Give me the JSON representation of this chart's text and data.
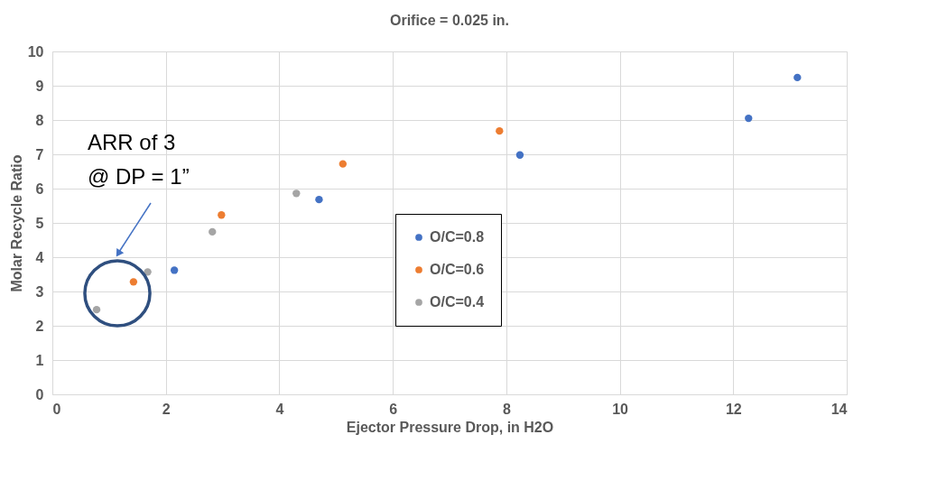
{
  "chart_data": {
    "type": "scatter",
    "title": "Orifice = 0.025 in.",
    "xlabel": "Ejector Pressure Drop, in H2O",
    "ylabel": "Molar Recycle Ratio",
    "series": [
      {
        "name": "O/C=0.8",
        "color": "#4472c4",
        "x": [
          2.15,
          4.7,
          8.24,
          12.27,
          13.13
        ],
        "values": [
          3.62,
          5.68,
          6.98,
          8.05,
          9.24
        ]
      },
      {
        "name": "O/C=0.6",
        "color": "#ed7d31",
        "x": [
          1.43,
          2.98,
          5.12,
          7.88
        ],
        "values": [
          3.28,
          5.23,
          6.72,
          7.68
        ]
      },
      {
        "name": "O/C=0.4",
        "color": "#a5a5a5",
        "x": [
          0.78,
          1.68,
          2.82,
          4.3
        ],
        "values": [
          2.47,
          3.57,
          4.74,
          5.86
        ]
      }
    ],
    "xlim": [
      0,
      14
    ],
    "xticks": [
      0,
      2,
      4,
      6,
      8,
      10,
      12,
      14
    ],
    "ylim": [
      0,
      10
    ],
    "yticks": [
      0,
      1,
      2,
      3,
      4,
      5,
      6,
      7,
      8,
      9,
      10
    ],
    "grid": true,
    "legend": "center",
    "marker": "circle",
    "annotations": [
      "ARR of 3\n@ DP = 1”"
    ]
  }
}
